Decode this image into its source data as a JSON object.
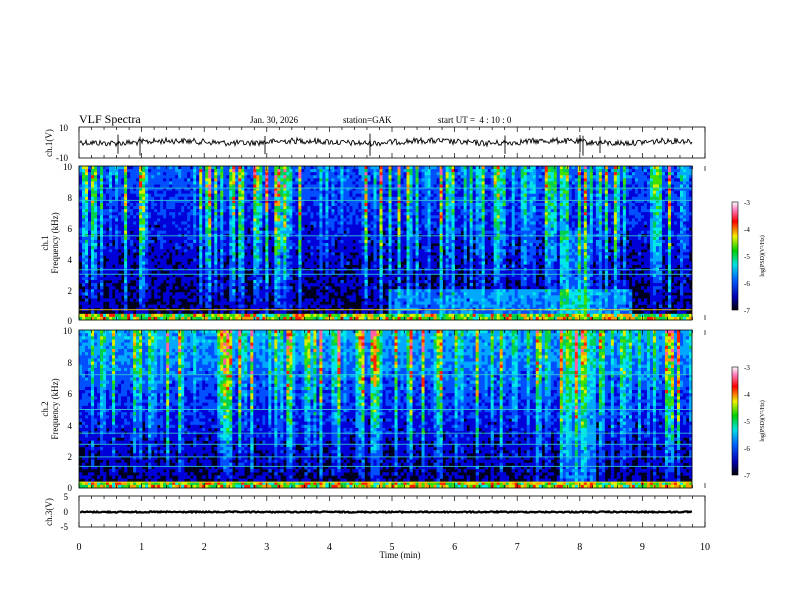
{
  "header": {
    "title": "VLF Spectra",
    "date": "Jan. 30, 2026",
    "station": "station=GAK",
    "start_ut": "start UT =  4 : 10 : 0"
  },
  "chart_data": [
    {
      "type": "line",
      "ylabel": "ch.1(V)",
      "ylim": [
        -10,
        10
      ],
      "y_ticks": [
        "10",
        "-10"
      ],
      "x_range": [
        0,
        10
      ]
    },
    {
      "type": "heatmap",
      "ylabel": "ch.1\nFrequency (kHz)",
      "ylabel_lines": [
        "ch.1",
        "Frequency (kHz)"
      ],
      "ylim": [
        0,
        10
      ],
      "y_ticks": [
        "0",
        "2",
        "4",
        "6",
        "8",
        "10"
      ],
      "colorbar": {
        "label": "log(PSD)(V²/Hz)",
        "range": [
          -7,
          -3
        ],
        "ticks": [
          "-3",
          "-4",
          "-5",
          "-6",
          "-7"
        ]
      }
    },
    {
      "type": "heatmap",
      "ylabel": "ch.2\nFrequency (kHz)",
      "ylabel_lines": [
        "ch.2",
        "Frequency (kHz)"
      ],
      "ylim": [
        0,
        10
      ],
      "y_ticks": [
        "0",
        "2",
        "4",
        "6",
        "8",
        "10"
      ],
      "colorbar": {
        "label": "log(PSD)(V²/Hz)",
        "range": [
          -7,
          -3
        ],
        "ticks": [
          "-3",
          "-4",
          "-5",
          "-6",
          "-7"
        ]
      }
    },
    {
      "type": "line",
      "ylabel": "ch.3(V)",
      "ylim": [
        -5,
        5
      ],
      "y_ticks": [
        "5",
        "0",
        "-5"
      ],
      "x_range": [
        0,
        10
      ]
    }
  ],
  "x_axis": {
    "label": "Time (min)",
    "ticks": [
      "0",
      "1",
      "2",
      "3",
      "4",
      "5",
      "6",
      "7",
      "8",
      "9",
      "10"
    ]
  }
}
